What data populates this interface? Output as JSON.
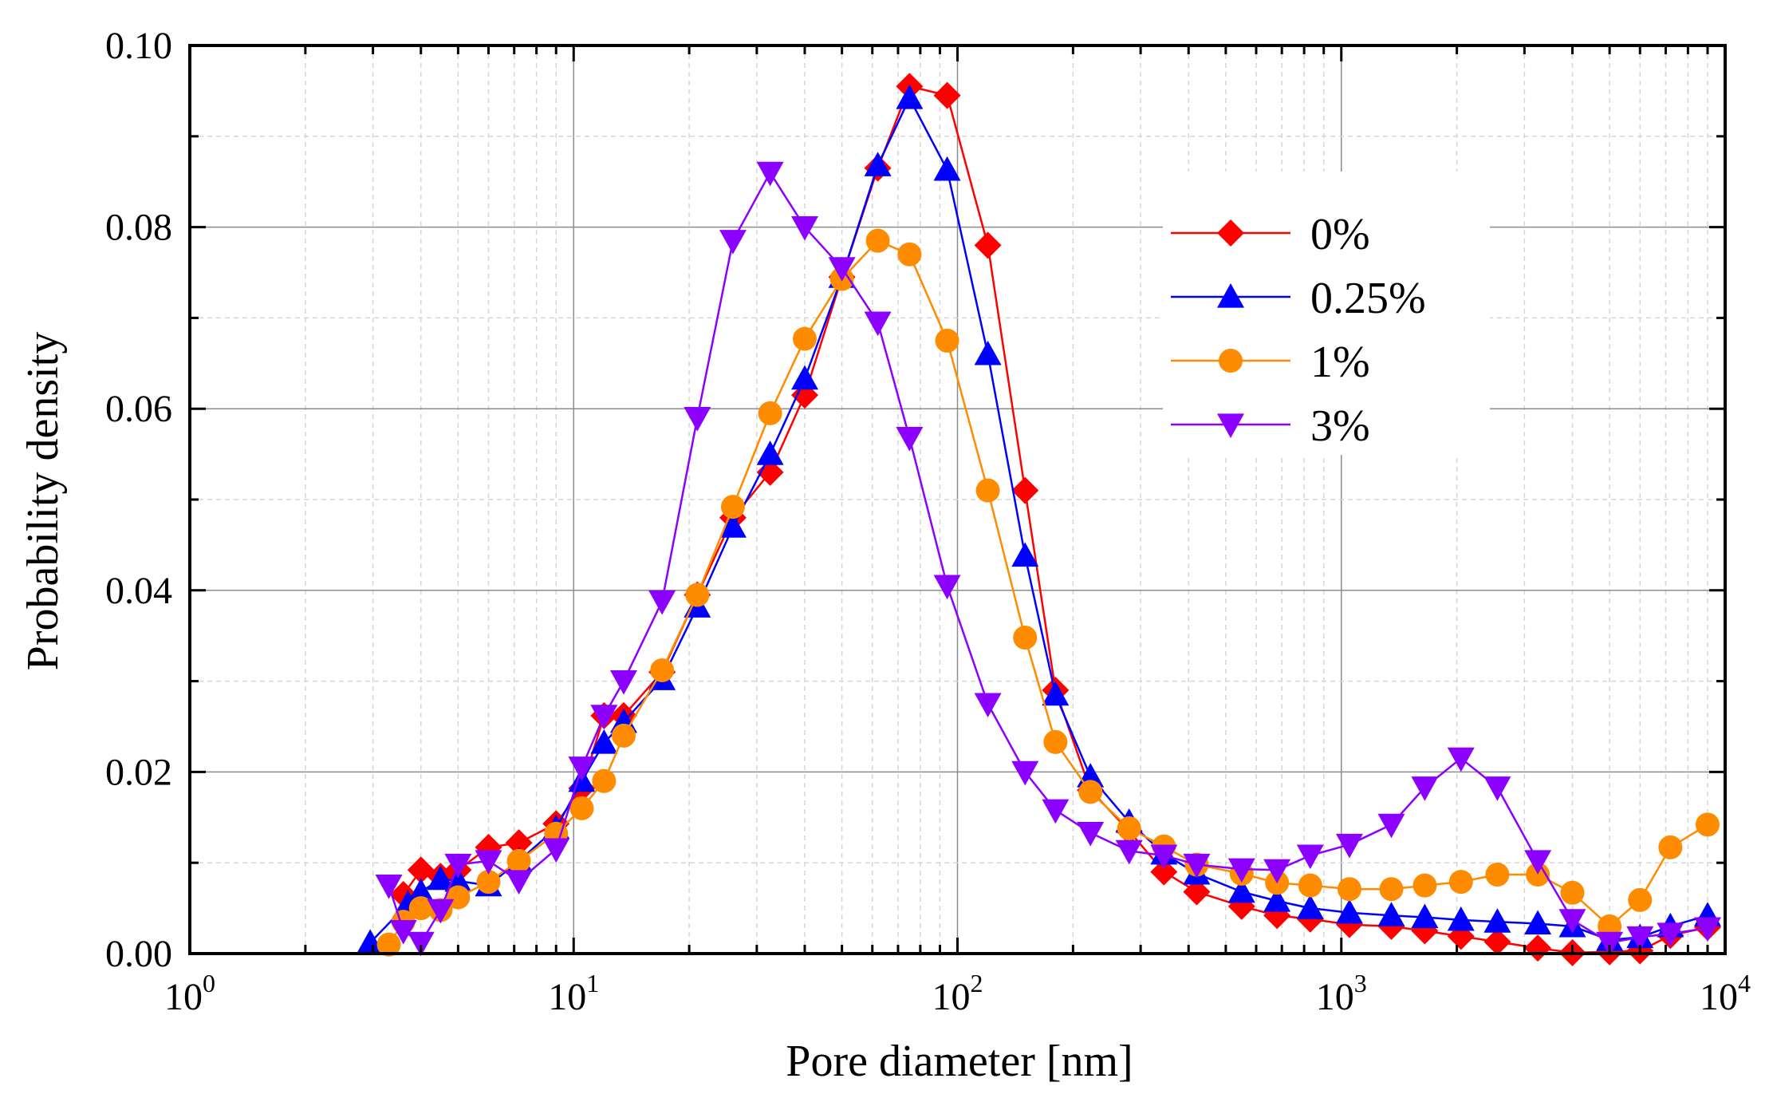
{
  "chart_data": {
    "type": "line",
    "xlabel": "Pore diameter [nm]",
    "ylabel": "Probability density",
    "xscale": "log",
    "xlim": [
      1,
      10000
    ],
    "ylim": [
      0,
      0.1
    ],
    "grid": true,
    "legend_position": "right",
    "x_ticks": [
      {
        "base": "10",
        "exp": "0",
        "value": 1
      },
      {
        "base": "10",
        "exp": "1",
        "value": 10
      },
      {
        "base": "10",
        "exp": "2",
        "value": 100
      },
      {
        "base": "10",
        "exp": "3",
        "value": 1000
      },
      {
        "base": "10",
        "exp": "4",
        "value": 10000
      }
    ],
    "y_ticks": [
      "0.00",
      "0.02",
      "0.04",
      "0.06",
      "0.08",
      "0.10"
    ],
    "series": [
      {
        "name": "0%",
        "color": "#ff0000",
        "marker": "diamond",
        "points": [
          [
            3.6,
            0.0065
          ],
          [
            4.0,
            0.0092
          ],
          [
            4.5,
            0.0085
          ],
          [
            5.0,
            0.0092
          ],
          [
            6.0,
            0.0117
          ],
          [
            7.2,
            0.0122
          ],
          [
            9.0,
            0.0143
          ],
          [
            10.5,
            0.0182
          ],
          [
            12.0,
            0.0262
          ],
          [
            13.5,
            0.0262
          ],
          [
            17.0,
            0.031
          ],
          [
            21.0,
            0.0395
          ],
          [
            26.0,
            0.048
          ],
          [
            32.5,
            0.053
          ],
          [
            40.0,
            0.0615
          ],
          [
            50.0,
            0.0745
          ],
          [
            62.0,
            0.0865
          ],
          [
            75.0,
            0.0955
          ],
          [
            94.0,
            0.0945
          ],
          [
            120.0,
            0.078
          ],
          [
            150.0,
            0.051
          ],
          [
            180.0,
            0.029
          ],
          [
            222.0,
            0.018
          ],
          [
            280.0,
            0.0135
          ],
          [
            345.0,
            0.009
          ],
          [
            420.0,
            0.0068
          ],
          [
            550.0,
            0.0052
          ],
          [
            680.0,
            0.0042
          ],
          [
            830.0,
            0.0038
          ],
          [
            1050.0,
            0.0032
          ],
          [
            1350.0,
            0.003
          ],
          [
            1650.0,
            0.0025
          ],
          [
            2050.0,
            0.0019
          ],
          [
            2550.0,
            0.0013
          ],
          [
            3250.0,
            0.0006
          ],
          [
            4000.0,
            0.0001
          ],
          [
            5000.0,
            0.0002
          ],
          [
            6000.0,
            0.0003
          ],
          [
            7200.0,
            0.002
          ],
          [
            9000.0,
            0.0029
          ]
        ]
      },
      {
        "name": "0.25%",
        "color": "#0000ff",
        "marker": "triangle-up",
        "points": [
          [
            2.95,
            0.0012
          ],
          [
            3.7,
            0.0055
          ],
          [
            4.0,
            0.0068
          ],
          [
            4.5,
            0.0082
          ],
          [
            5.0,
            0.008
          ],
          [
            6.0,
            0.0075
          ],
          [
            7.2,
            0.0102
          ],
          [
            9.0,
            0.0138
          ],
          [
            10.5,
            0.019
          ],
          [
            12.0,
            0.0232
          ],
          [
            13.5,
            0.0255
          ],
          [
            17.0,
            0.0302
          ],
          [
            21.0,
            0.0382
          ],
          [
            26.0,
            0.047
          ],
          [
            32.5,
            0.055
          ],
          [
            40.0,
            0.0633
          ],
          [
            50.0,
            0.0745
          ],
          [
            62.0,
            0.0868
          ],
          [
            75.0,
            0.0942
          ],
          [
            94.0,
            0.0863
          ],
          [
            120.0,
            0.066
          ],
          [
            150.0,
            0.0438
          ],
          [
            180.0,
            0.0285
          ],
          [
            222.0,
            0.0195
          ],
          [
            280.0,
            0.0145
          ],
          [
            345.0,
            0.011
          ],
          [
            420.0,
            0.0088
          ],
          [
            550.0,
            0.0068
          ],
          [
            680.0,
            0.0058
          ],
          [
            830.0,
            0.005
          ],
          [
            1050.0,
            0.0045
          ],
          [
            1350.0,
            0.0042
          ],
          [
            1650.0,
            0.004
          ],
          [
            2050.0,
            0.0037
          ],
          [
            2550.0,
            0.0035
          ],
          [
            3250.0,
            0.0033
          ],
          [
            4000.0,
            0.003
          ],
          [
            5000.0,
            0.0015
          ],
          [
            6000.0,
            0.0018
          ],
          [
            7200.0,
            0.003
          ],
          [
            9000.0,
            0.0042
          ]
        ]
      },
      {
        "name": "1%",
        "color": "#ff8c00",
        "marker": "circle",
        "points": [
          [
            3.3,
            0.001
          ],
          [
            3.6,
            0.0035
          ],
          [
            4.0,
            0.005
          ],
          [
            4.5,
            0.0048
          ],
          [
            5.0,
            0.0062
          ],
          [
            6.0,
            0.0079
          ],
          [
            7.2,
            0.0102
          ],
          [
            9.0,
            0.0132
          ],
          [
            10.5,
            0.016
          ],
          [
            12.0,
            0.019
          ],
          [
            13.5,
            0.024
          ],
          [
            17.0,
            0.0312
          ],
          [
            21.0,
            0.0395
          ],
          [
            26.0,
            0.0492
          ],
          [
            32.5,
            0.0595
          ],
          [
            40.0,
            0.0677
          ],
          [
            50.0,
            0.0743
          ],
          [
            62.0,
            0.0785
          ],
          [
            75.0,
            0.077
          ],
          [
            94.0,
            0.0675
          ],
          [
            120.0,
            0.051
          ],
          [
            150.0,
            0.0348
          ],
          [
            180.0,
            0.0233
          ],
          [
            222.0,
            0.0178
          ],
          [
            280.0,
            0.0138
          ],
          [
            345.0,
            0.0118
          ],
          [
            420.0,
            0.0098
          ],
          [
            550.0,
            0.0088
          ],
          [
            680.0,
            0.0078
          ],
          [
            830.0,
            0.0075
          ],
          [
            1050.0,
            0.0071
          ],
          [
            1350.0,
            0.0071
          ],
          [
            1650.0,
            0.0075
          ],
          [
            2050.0,
            0.0079
          ],
          [
            2550.0,
            0.0087
          ],
          [
            3250.0,
            0.0087
          ],
          [
            4000.0,
            0.0067
          ],
          [
            5000.0,
            0.003
          ],
          [
            6000.0,
            0.0059
          ],
          [
            7200.0,
            0.0117
          ],
          [
            9000.0,
            0.0142
          ]
        ]
      },
      {
        "name": "3%",
        "color": "#8b00ff",
        "marker": "triangle-down",
        "points": [
          [
            3.3,
            0.0075
          ],
          [
            3.6,
            0.0025
          ],
          [
            4.0,
            0.0012
          ],
          [
            4.5,
            0.0048
          ],
          [
            5.0,
            0.0098
          ],
          [
            6.0,
            0.0102
          ],
          [
            7.2,
            0.008
          ],
          [
            9.0,
            0.0115
          ],
          [
            10.5,
            0.0205
          ],
          [
            12.0,
            0.0262
          ],
          [
            13.5,
            0.03
          ],
          [
            17.0,
            0.0388
          ],
          [
            21.0,
            0.059
          ],
          [
            26.0,
            0.0785
          ],
          [
            32.5,
            0.086
          ],
          [
            40.0,
            0.08
          ],
          [
            50.0,
            0.0755
          ],
          [
            62.0,
            0.0695
          ],
          [
            75.0,
            0.0568
          ],
          [
            94.0,
            0.0405
          ],
          [
            120.0,
            0.0275
          ],
          [
            150.0,
            0.02
          ],
          [
            180.0,
            0.0158
          ],
          [
            222.0,
            0.0133
          ],
          [
            280.0,
            0.0113
          ],
          [
            345.0,
            0.0108
          ],
          [
            420.0,
            0.0098
          ],
          [
            550.0,
            0.0093
          ],
          [
            680.0,
            0.0092
          ],
          [
            830.0,
            0.0108
          ],
          [
            1050.0,
            0.012
          ],
          [
            1350.0,
            0.0142
          ],
          [
            1650.0,
            0.0183
          ],
          [
            2050.0,
            0.0215
          ],
          [
            2550.0,
            0.0183
          ],
          [
            3250.0,
            0.0102
          ],
          [
            4000.0,
            0.0037
          ],
          [
            5000.0,
            0.0012
          ],
          [
            6000.0,
            0.0018
          ],
          [
            7200.0,
            0.0022
          ],
          [
            9000.0,
            0.0028
          ]
        ]
      }
    ]
  }
}
